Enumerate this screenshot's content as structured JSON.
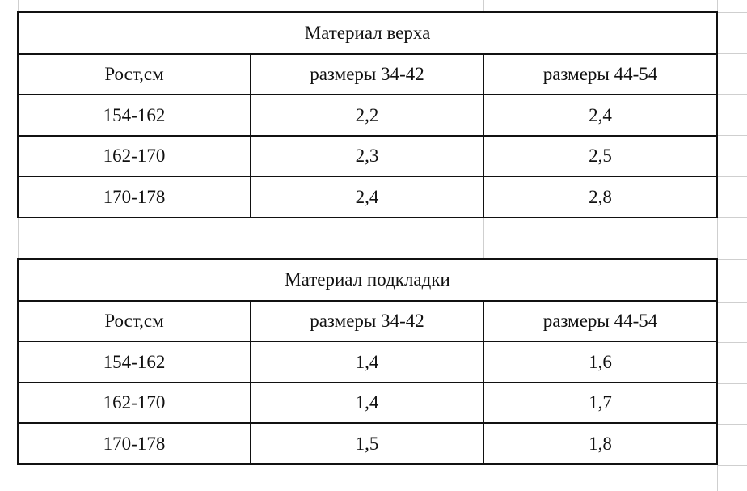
{
  "tables": [
    {
      "title": "Материал верха",
      "header": [
        "Рост,см",
        "размеры 34-42",
        "размеры 44-54"
      ],
      "rows": [
        [
          "154-162",
          "2,2",
          "2,4"
        ],
        [
          "162-170",
          "2,3",
          "2,5"
        ],
        [
          "170-178",
          "2,4",
          "2,8"
        ]
      ]
    },
    {
      "title": "Материал подкладки",
      "header": [
        "Рост,см",
        "размеры 34-42",
        "размеры 44-54"
      ],
      "rows": [
        [
          "154-162",
          "1,4",
          "1,6"
        ],
        [
          "162-170",
          "1,4",
          "1,7"
        ],
        [
          "170-178",
          "1,5",
          "1,8"
        ]
      ]
    }
  ]
}
